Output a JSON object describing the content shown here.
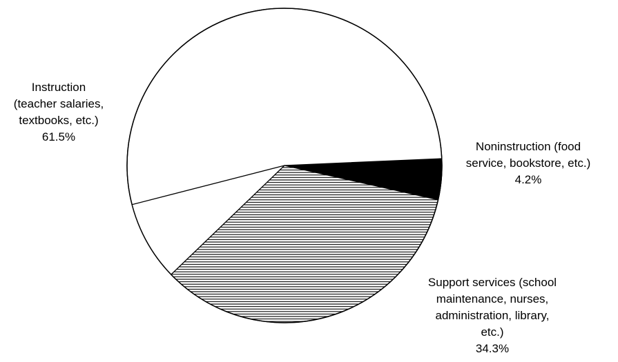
{
  "chart_data": {
    "type": "pie",
    "title": "",
    "slices": [
      {
        "category": "Instruction",
        "label_lines": [
          "Instruction",
          "(teacher salaries,",
          "textbooks, etc.)"
        ],
        "value": 61.5,
        "value_label": "61.5%",
        "fill": "none"
      },
      {
        "category": "Noninstruction",
        "label_lines": [
          "Noninstruction (food",
          "service, bookstore, etc.)"
        ],
        "value": 4.2,
        "value_label": "4.2%",
        "fill": "solid-black"
      },
      {
        "category": "Support services",
        "label_lines": [
          "Support services (school",
          "maintenance, nurses,",
          "administration, library,",
          "etc.)"
        ],
        "value": 34.3,
        "value_label": "34.3%",
        "fill": "horizontal-hatch"
      }
    ],
    "colors": {
      "outline": "#000000",
      "background": "#ffffff",
      "black_fill": "#000000"
    },
    "legend": "none",
    "labels": "outside"
  }
}
